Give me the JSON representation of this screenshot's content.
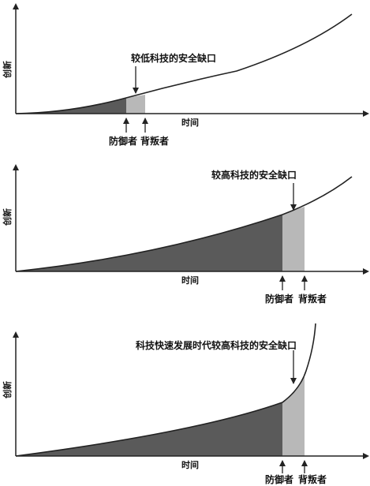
{
  "panels": [
    {
      "y_label": "创新",
      "x_label": "时间",
      "gap_label": "较低科技的安全缺口",
      "defender_label": "防御者",
      "attacker_label": "背叛者"
    },
    {
      "y_label": "创新",
      "x_label": "时间",
      "gap_label": "较高科技的安全缺口",
      "defender_label": "防御者",
      "attacker_label": "背叛者"
    },
    {
      "y_label": "创新",
      "x_label": "时间",
      "gap_label": "科技快速发展时代较高科技的安全缺口",
      "defender_label": "防御者",
      "attacker_label": "背叛者"
    }
  ],
  "colors": {
    "defender_fill": "#5a5a5a",
    "gap_fill": "#b8b8b8",
    "line": "#222222"
  }
}
